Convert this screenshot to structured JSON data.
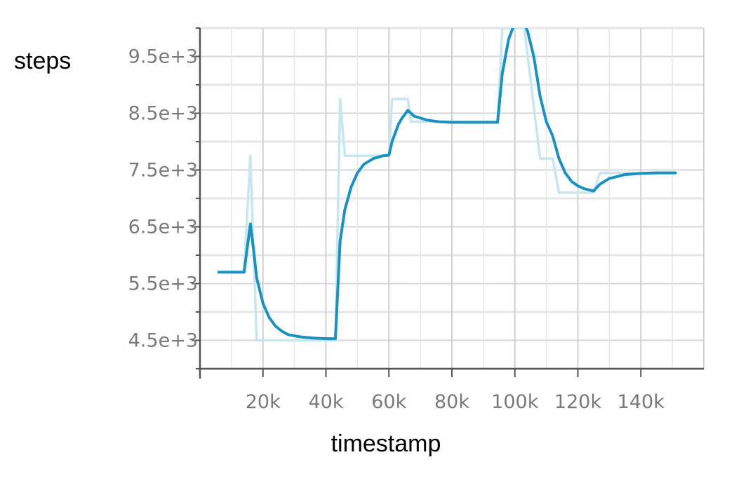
{
  "chart_data": {
    "type": "line",
    "xlabel": "timestamp",
    "ylabel": "steps",
    "xlim": [
      0,
      160000
    ],
    "ylim": [
      4000,
      10000
    ],
    "x_ticks": [
      {
        "value": 20000,
        "label": "20k"
      },
      {
        "value": 40000,
        "label": "40k"
      },
      {
        "value": 60000,
        "label": "60k"
      },
      {
        "value": 80000,
        "label": "80k"
      },
      {
        "value": 100000,
        "label": "100k"
      },
      {
        "value": 120000,
        "label": "120k"
      },
      {
        "value": 140000,
        "label": "140k"
      }
    ],
    "y_ticks": [
      {
        "value": 4500,
        "label": "4.5e+3"
      },
      {
        "value": 5500,
        "label": "5.5e+3"
      },
      {
        "value": 6500,
        "label": "6.5e+3"
      },
      {
        "value": 7500,
        "label": "7.5e+3"
      },
      {
        "value": 8500,
        "label": "8.5e+3"
      },
      {
        "value": 9500,
        "label": "9.5e+3"
      }
    ],
    "grid": true,
    "series": [
      {
        "role": "raw",
        "color": "#c7e6f0",
        "x": [
          6000,
          14000,
          16000,
          18000,
          24000,
          30000,
          43000,
          44500,
          46000,
          52000,
          60000,
          61000,
          66000,
          67000,
          75000,
          86000,
          94500,
          96000,
          103000,
          108000,
          112000,
          114000,
          120000,
          125000,
          127000,
          140000,
          150000
        ],
        "y": [
          5700,
          5700,
          7750,
          4500,
          4500,
          4500,
          4500,
          8750,
          7750,
          7750,
          7750,
          8750,
          8750,
          8350,
          8350,
          8350,
          8350,
          10000,
          10000,
          7700,
          7700,
          7100,
          7100,
          7100,
          7450,
          7450,
          7450
        ]
      },
      {
        "role": "smoothed",
        "color": "#1b91bf",
        "x": [
          6000,
          14000,
          16000,
          17000,
          18000,
          20000,
          22000,
          24000,
          26000,
          28000,
          32000,
          36000,
          40000,
          43000,
          44500,
          46000,
          48000,
          50000,
          52000,
          55000,
          58000,
          60000,
          61000,
          63000,
          64000,
          66000,
          68000,
          72000,
          76000,
          80000,
          85000,
          90000,
          94500,
          96000,
          98000,
          100000,
          102000,
          104000,
          106000,
          108000,
          110000,
          112000,
          114000,
          116000,
          118000,
          120000,
          122000,
          125000,
          127000,
          130000,
          135000,
          140000,
          145000,
          151000
        ],
        "y": [
          5700,
          5700,
          6550,
          6100,
          5600,
          5150,
          4900,
          4750,
          4660,
          4600,
          4560,
          4540,
          4530,
          4530,
          6250,
          6800,
          7200,
          7450,
          7600,
          7700,
          7750,
          7760,
          8000,
          8300,
          8400,
          8550,
          8450,
          8380,
          8350,
          8340,
          8340,
          8340,
          8340,
          9200,
          9800,
          10100,
          10200,
          9950,
          9500,
          8800,
          8350,
          8100,
          7700,
          7450,
          7300,
          7220,
          7170,
          7130,
          7250,
          7350,
          7420,
          7440,
          7450,
          7450
        ]
      }
    ]
  }
}
